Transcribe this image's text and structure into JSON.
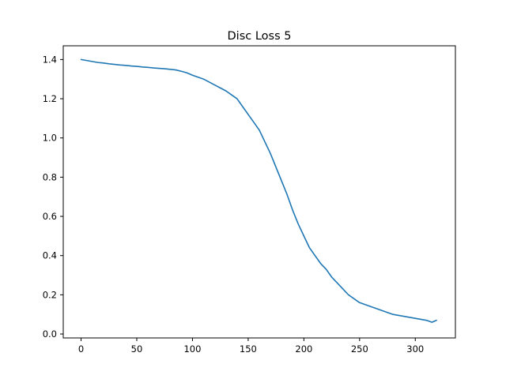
{
  "chart_data": {
    "type": "line",
    "title": "Disc Loss 5",
    "xlabel": "",
    "ylabel": "",
    "xlim": [
      -16,
      336
    ],
    "ylim": [
      -0.02,
      1.47
    ],
    "xticks": [
      0,
      50,
      100,
      150,
      200,
      250,
      300
    ],
    "yticks": [
      0.0,
      0.2,
      0.4,
      0.6,
      0.8,
      1.0,
      1.2,
      1.4
    ],
    "xtick_labels": [
      "0",
      "50",
      "100",
      "150",
      "200",
      "250",
      "300"
    ],
    "ytick_labels": [
      "0.0",
      "0.2",
      "0.4",
      "0.6",
      "0.8",
      "1.0",
      "1.2",
      "1.4"
    ],
    "grid": false,
    "legend": "none",
    "series": [
      {
        "color": "#1f77b4",
        "x": [
          0,
          5,
          10,
          15,
          20,
          25,
          30,
          35,
          40,
          45,
          50,
          55,
          60,
          65,
          70,
          75,
          80,
          85,
          90,
          95,
          100,
          105,
          110,
          115,
          120,
          125,
          130,
          135,
          140,
          145,
          150,
          155,
          160,
          165,
          170,
          175,
          180,
          185,
          190,
          195,
          200,
          205,
          210,
          215,
          220,
          225,
          230,
          235,
          240,
          245,
          250,
          255,
          260,
          265,
          270,
          275,
          280,
          285,
          290,
          295,
          300,
          305,
          310,
          315,
          319
        ],
        "y": [
          1.4,
          1.395,
          1.39,
          1.385,
          1.382,
          1.378,
          1.375,
          1.372,
          1.37,
          1.367,
          1.365,
          1.362,
          1.36,
          1.357,
          1.355,
          1.353,
          1.35,
          1.347,
          1.34,
          1.332,
          1.32,
          1.31,
          1.3,
          1.285,
          1.27,
          1.255,
          1.24,
          1.22,
          1.2,
          1.16,
          1.12,
          1.08,
          1.04,
          0.98,
          0.92,
          0.85,
          0.78,
          0.71,
          0.63,
          0.56,
          0.5,
          0.44,
          0.4,
          0.36,
          0.33,
          0.29,
          0.26,
          0.23,
          0.2,
          0.18,
          0.16,
          0.15,
          0.14,
          0.13,
          0.12,
          0.11,
          0.1,
          0.095,
          0.09,
          0.085,
          0.08,
          0.075,
          0.07,
          0.06,
          0.07
        ]
      }
    ]
  }
}
